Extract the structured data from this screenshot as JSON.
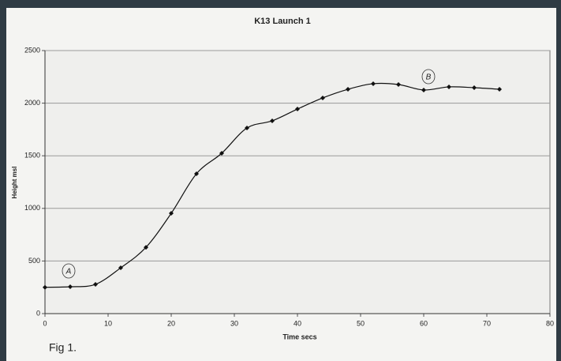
{
  "chart_data": {
    "type": "line",
    "title": "K13  Launch 1",
    "x_label": "Time secs",
    "y_label": "Height msl",
    "x": [
      0,
      4,
      8,
      12,
      16,
      20,
      24,
      28,
      32,
      36,
      40,
      44,
      48,
      52,
      56,
      60,
      64,
      68,
      72
    ],
    "series": [
      {
        "color": "#111111",
        "values": [
          250,
          255,
          278,
          435,
          630,
          953,
          1329,
          1524,
          1764,
          1832,
          1944,
          2050,
          2132,
          2185,
          2177,
          2125,
          2155,
          2147,
          2132
        ]
      }
    ],
    "xlim": [
      0,
      80
    ],
    "xticks": [
      0,
      10,
      20,
      30,
      40,
      50,
      60,
      70,
      80
    ],
    "ylim": [
      0,
      2500
    ],
    "yticks": [
      0,
      500,
      1000,
      1500,
      2000,
      2500
    ],
    "grid": true,
    "annotations": [
      "A",
      "B"
    ],
    "caption": "Fig 1."
  }
}
